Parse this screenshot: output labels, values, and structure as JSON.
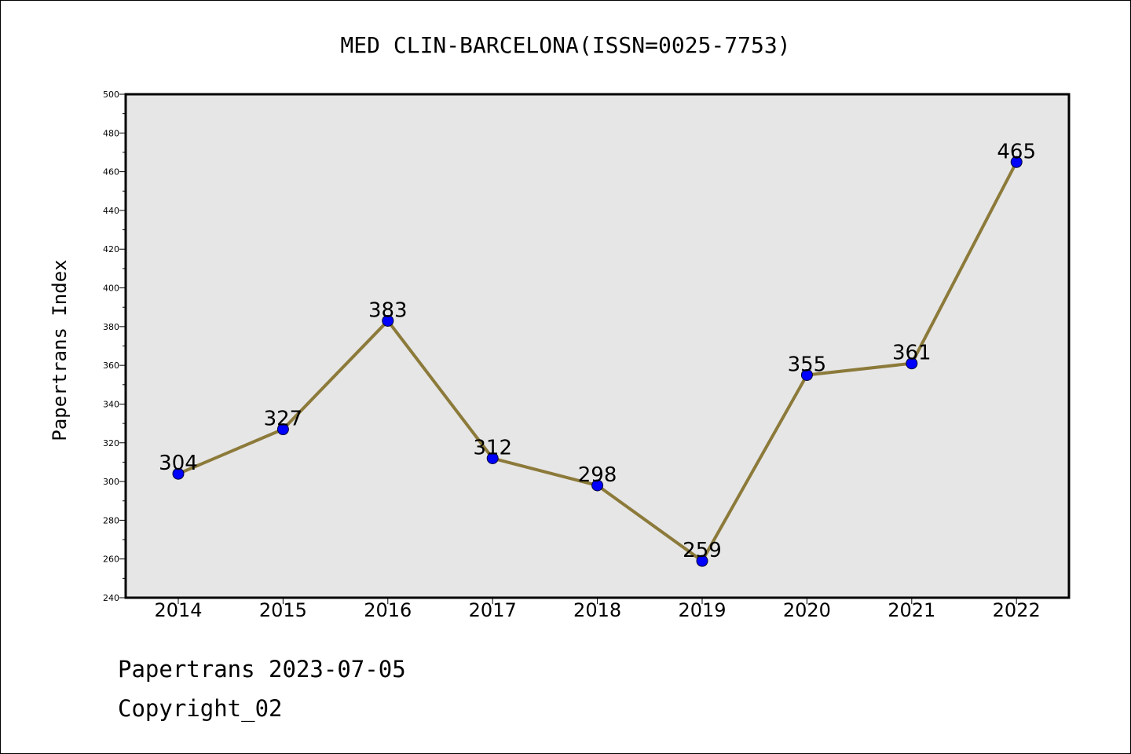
{
  "chart_data": {
    "type": "line",
    "title": "MED CLIN-BARCELONA(ISSN=0025-7753)",
    "xlabel": "",
    "ylabel": "Papertrans Index",
    "categories": [
      "2014",
      "2015",
      "2016",
      "2017",
      "2018",
      "2019",
      "2020",
      "2021",
      "2022"
    ],
    "series": [
      {
        "values": [
          304,
          327,
          383,
          312,
          298,
          259,
          355,
          361,
          465
        ],
        "data_labels": [
          "304",
          "327",
          "383",
          "312",
          "298",
          "259",
          "355",
          "361",
          "465"
        ]
      }
    ],
    "ylim": [
      240,
      500
    ],
    "yticks": [
      240,
      260,
      280,
      300,
      320,
      340,
      360,
      380,
      400,
      420,
      440,
      460,
      480,
      500
    ],
    "ytick_labels": [
      "240",
      "260",
      "280",
      "300",
      "320",
      "340",
      "360",
      "380",
      "400",
      "420",
      "440",
      "460",
      "480",
      "500"
    ],
    "grid": false,
    "legend": "none",
    "colors": {
      "line": "#8c7a3a",
      "marker": "#0000ff",
      "plot_background": "#e6e6e6",
      "axis": "#000000"
    }
  },
  "footer": {
    "date_line": "Papertrans 2023-07-05",
    "copyright_line": "Copyright_02"
  }
}
